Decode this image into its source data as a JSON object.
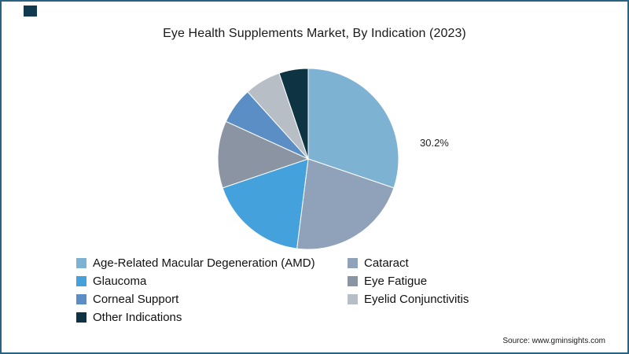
{
  "frame": {
    "border_color": "#2a6284",
    "corner_accent_color": "#113a50",
    "background": "#ffffff"
  },
  "title": "Eye Health Supplements Market, By Indication (2023)",
  "chart_data": {
    "type": "pie",
    "title": "Eye Health Supplements Market, By Indication (2023)",
    "start_angle_deg": 0,
    "direction": "clockwise",
    "legend_position": "bottom",
    "legend_columns": 2,
    "slices": [
      {
        "label": "Age-Related Macular Degeneration (AMD)",
        "value": 30.2,
        "color": "#7eb2d3",
        "data_label": "30.2%"
      },
      {
        "label": "Cataract",
        "value": 21.8,
        "color": "#8fa2ba"
      },
      {
        "label": "Glaucoma",
        "value": 17.8,
        "color": "#45a1dc"
      },
      {
        "label": "Eye Fatigue",
        "value": 12.0,
        "color": "#8a94a3"
      },
      {
        "label": "Corneal Support",
        "value": 6.5,
        "color": "#5b8ec4"
      },
      {
        "label": "Eyelid Conjunctivitis",
        "value": 6.5,
        "color": "#b7bec6"
      },
      {
        "label": "Other Indications",
        "value": 5.2,
        "color": "#0e3443"
      }
    ]
  },
  "annotations": {
    "amd_percent_label": "30.2%"
  },
  "source": "Source: www.gminsights.com"
}
